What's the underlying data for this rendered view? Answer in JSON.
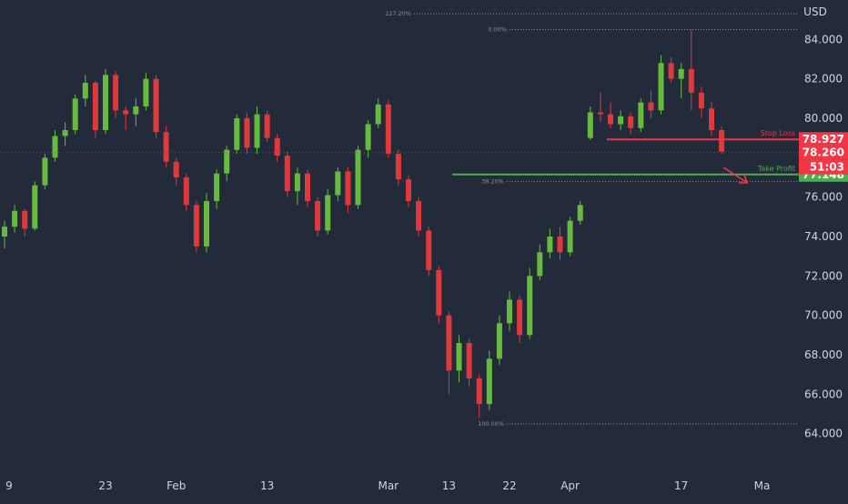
{
  "chart_data": {
    "type": "candlestick",
    "currency_label": "USD",
    "ylim": [
      62,
      86
    ],
    "y_ticks": [
      64.0,
      66.0,
      68.0,
      70.0,
      72.0,
      74.0,
      76.0,
      78.0,
      80.0,
      82.0,
      84.0
    ],
    "x_ticks": [
      {
        "label": "9",
        "index": 0
      },
      {
        "label": "23",
        "index": 10
      },
      {
        "label": "Feb",
        "index": 17
      },
      {
        "label": "13",
        "index": 26
      },
      {
        "label": "Mar",
        "index": 38
      },
      {
        "label": "13",
        "index": 44
      },
      {
        "label": "22",
        "index": 50
      },
      {
        "label": "Apr",
        "index": 56
      },
      {
        "label": "17",
        "index": 67
      },
      {
        "label": "Ma",
        "index": 75
      }
    ],
    "colors": {
      "up": "#66bb3e",
      "down": "#e0393c",
      "background": "#232a3a",
      "stop_loss": "#f23645",
      "take_profit": "#4caf50",
      "fib_line": "#8a8f9c",
      "price_tag": "#f23645"
    },
    "candles": [
      [
        0,
        74.0,
        74.8,
        73.4,
        74.5
      ],
      [
        1,
        74.5,
        75.6,
        74.2,
        75.3
      ],
      [
        2,
        75.3,
        75.4,
        74.0,
        74.4
      ],
      [
        3,
        74.4,
        76.8,
        74.3,
        76.6
      ],
      [
        4,
        76.6,
        78.2,
        76.4,
        78.0
      ],
      [
        5,
        78.0,
        79.4,
        77.8,
        79.1
      ],
      [
        6,
        79.1,
        79.8,
        78.6,
        79.4
      ],
      [
        7,
        79.4,
        81.2,
        79.2,
        81.0
      ],
      [
        8,
        81.0,
        82.2,
        80.6,
        81.8
      ],
      [
        9,
        81.8,
        81.9,
        79.0,
        79.4
      ],
      [
        10,
        79.4,
        82.5,
        79.2,
        82.2
      ],
      [
        11,
        82.2,
        82.4,
        80.0,
        80.4
      ],
      [
        12,
        80.4,
        80.6,
        79.4,
        80.2
      ],
      [
        13,
        80.2,
        81.0,
        79.6,
        80.6
      ],
      [
        14,
        80.6,
        82.3,
        80.4,
        82.0
      ],
      [
        15,
        82.0,
        82.2,
        79.0,
        79.3
      ],
      [
        16,
        79.3,
        79.6,
        77.5,
        77.8
      ],
      [
        17,
        77.8,
        78.0,
        76.6,
        77.0
      ],
      [
        18,
        77.0,
        77.2,
        75.3,
        75.6
      ],
      [
        19,
        75.6,
        75.8,
        73.2,
        73.5
      ],
      [
        20,
        73.5,
        76.2,
        73.2,
        75.8
      ],
      [
        21,
        75.8,
        77.4,
        75.4,
        77.2
      ],
      [
        22,
        77.2,
        78.6,
        76.8,
        78.4
      ],
      [
        23,
        78.4,
        80.2,
        78.2,
        80.0
      ],
      [
        24,
        80.0,
        80.3,
        78.2,
        78.5
      ],
      [
        25,
        78.5,
        80.6,
        78.2,
        80.2
      ],
      [
        26,
        80.2,
        80.4,
        78.8,
        79.0
      ],
      [
        27,
        79.0,
        79.2,
        77.8,
        78.1
      ],
      [
        28,
        78.1,
        78.3,
        76.0,
        76.3
      ],
      [
        29,
        76.3,
        77.5,
        75.6,
        77.2
      ],
      [
        30,
        77.2,
        77.4,
        75.5,
        75.8
      ],
      [
        31,
        75.8,
        76.0,
        74.0,
        74.3
      ],
      [
        32,
        74.3,
        76.4,
        74.1,
        76.1
      ],
      [
        33,
        76.1,
        77.5,
        75.8,
        77.3
      ],
      [
        34,
        77.3,
        77.5,
        75.2,
        75.6
      ],
      [
        35,
        75.6,
        78.6,
        75.4,
        78.4
      ],
      [
        36,
        78.4,
        79.9,
        78.0,
        79.7
      ],
      [
        37,
        79.7,
        81.0,
        79.5,
        80.7
      ],
      [
        38,
        80.7,
        80.9,
        78.0,
        78.2
      ],
      [
        39,
        78.2,
        78.4,
        76.6,
        76.9
      ],
      [
        40,
        76.9,
        77.1,
        75.5,
        75.8
      ],
      [
        41,
        75.8,
        76.0,
        74.0,
        74.3
      ],
      [
        42,
        74.3,
        74.5,
        72.0,
        72.3
      ],
      [
        43,
        72.3,
        72.5,
        69.6,
        70.0
      ],
      [
        44,
        70.0,
        70.2,
        66.0,
        67.2
      ],
      [
        45,
        67.2,
        69.0,
        66.6,
        68.6
      ],
      [
        46,
        68.6,
        68.8,
        66.4,
        66.8
      ],
      [
        47,
        66.8,
        67.0,
        64.8,
        65.5
      ],
      [
        48,
        65.5,
        68.2,
        65.2,
        67.8
      ],
      [
        49,
        67.8,
        70.0,
        67.5,
        69.6
      ],
      [
        50,
        69.6,
        71.2,
        69.2,
        70.8
      ],
      [
        51,
        70.8,
        71.0,
        68.6,
        69.0
      ],
      [
        52,
        69.0,
        72.4,
        68.8,
        72.0
      ],
      [
        53,
        72.0,
        73.6,
        71.8,
        73.2
      ],
      [
        54,
        73.2,
        74.4,
        72.9,
        74.0
      ],
      [
        55,
        74.0,
        74.5,
        72.8,
        73.2
      ],
      [
        56,
        73.2,
        75.0,
        73.0,
        74.8
      ],
      [
        57,
        74.8,
        75.8,
        74.6,
        75.6
      ],
      [
        58,
        79.0,
        80.6,
        78.9,
        80.3
      ],
      [
        59,
        80.3,
        81.3,
        79.8,
        80.2
      ],
      [
        60,
        80.2,
        80.8,
        79.5,
        79.7
      ],
      [
        61,
        79.7,
        80.4,
        79.4,
        80.1
      ],
      [
        62,
        80.1,
        80.3,
        79.2,
        79.5
      ],
      [
        63,
        79.5,
        81.0,
        79.3,
        80.8
      ],
      [
        64,
        80.8,
        81.4,
        80.0,
        80.4
      ],
      [
        65,
        80.4,
        83.2,
        80.2,
        82.8
      ],
      [
        66,
        82.8,
        83.1,
        81.8,
        82.0
      ],
      [
        67,
        82.0,
        82.8,
        81.0,
        82.5
      ],
      [
        68,
        82.5,
        84.5,
        80.4,
        81.3
      ],
      [
        69,
        81.3,
        81.6,
        80.0,
        80.5
      ],
      [
        70,
        80.5,
        80.8,
        79.1,
        79.4
      ],
      [
        71,
        79.4,
        79.6,
        78.2,
        78.3
      ]
    ],
    "fib_levels": [
      {
        "label": "127.20%",
        "price": 85.3
      },
      {
        "label": "0.00%",
        "price": 84.5
      },
      {
        "label": "38.20%",
        "price": 76.8
      },
      {
        "label": "100.00%",
        "price": 64.5
      }
    ],
    "stop_loss": {
      "label": "Stop Loss",
      "price": 78.927
    },
    "take_profit": {
      "label": "Take Profit",
      "price": 77.148
    },
    "price_tags": [
      {
        "price": 78.927,
        "text": "78.927"
      },
      {
        "price": 78.26,
        "text": "78.260"
      },
      {
        "text": "51:03"
      },
      {
        "price": 77.148,
        "text": "77.148"
      }
    ],
    "current_price": 78.26
  }
}
